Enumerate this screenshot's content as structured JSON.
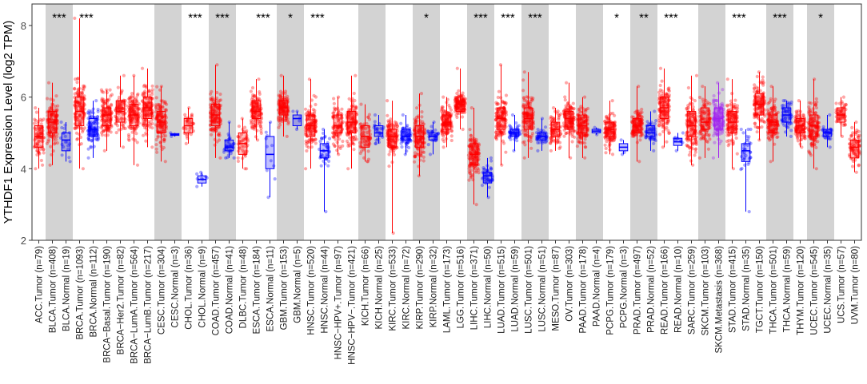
{
  "chart_data": {
    "type": "box",
    "title": "",
    "ylabel": "YTHDF1 Expression Level (log2 TPM)",
    "xlabel": "",
    "ylim": [
      2,
      8.6
    ],
    "yticks": [
      2,
      4,
      6,
      8
    ],
    "colors": {
      "tumor": "#ff0000",
      "normal": "#0000ff",
      "metastasis": "#a020f0",
      "band": "#d3d3d3"
    },
    "categories": [
      {
        "label": "ACC.Tumor (n=79)",
        "group": "tumor",
        "median": 4.9,
        "q1": 4.6,
        "q3": 5.2,
        "min": 4.0,
        "max": 5.7,
        "n": 79,
        "shade": false,
        "sig": ""
      },
      {
        "label": "BLCA.Tumor (n=408)",
        "group": "tumor",
        "median": 5.3,
        "q1": 5.0,
        "q3": 5.6,
        "min": 4.1,
        "max": 6.4,
        "n": 408,
        "shade": true,
        "sig": "***"
      },
      {
        "label": "BLCA.Normal (n=19)",
        "group": "normal",
        "median": 4.8,
        "q1": 4.5,
        "q3": 5.0,
        "min": 4.2,
        "max": 5.3,
        "n": 19,
        "shade": true,
        "sig": ""
      },
      {
        "label": "BRCA.Tumor (n=1093)",
        "group": "tumor",
        "median": 5.6,
        "q1": 5.2,
        "q3": 6.0,
        "min": 4.0,
        "max": 8.2,
        "n": 1093,
        "shade": false,
        "sig": "***"
      },
      {
        "label": "BRCA.Normal (n=112)",
        "group": "normal",
        "median": 5.1,
        "q1": 4.9,
        "q3": 5.4,
        "min": 4.3,
        "max": 5.9,
        "n": 112,
        "shade": false,
        "sig": ""
      },
      {
        "label": "BRCA−Basal.Tumor (n=190)",
        "group": "tumor",
        "median": 5.5,
        "q1": 5.2,
        "q3": 5.7,
        "min": 4.5,
        "max": 6.2,
        "n": 190,
        "shade": false,
        "sig": ""
      },
      {
        "label": "BRCA−Her2.Tumor (n=82)",
        "group": "tumor",
        "median": 5.6,
        "q1": 5.3,
        "q3": 5.9,
        "min": 4.6,
        "max": 6.6,
        "n": 82,
        "shade": false,
        "sig": ""
      },
      {
        "label": "BRCA−LumA.Tumor (n=564)",
        "group": "tumor",
        "median": 5.5,
        "q1": 5.2,
        "q3": 5.8,
        "min": 4.1,
        "max": 6.6,
        "n": 564,
        "shade": false,
        "sig": ""
      },
      {
        "label": "BRCA−LumB.Tumor (n=217)",
        "group": "tumor",
        "median": 5.7,
        "q1": 5.4,
        "q3": 6.0,
        "min": 4.6,
        "max": 6.8,
        "n": 217,
        "shade": false,
        "sig": ""
      },
      {
        "label": "CESC.Tumor (n=304)",
        "group": "tumor",
        "median": 5.3,
        "q1": 5.0,
        "q3": 5.6,
        "min": 4.2,
        "max": 6.3,
        "n": 304,
        "shade": true,
        "sig": ""
      },
      {
        "label": "CESC.Normal (n=3)",
        "group": "normal",
        "median": 4.95,
        "q1": 4.93,
        "q3": 4.98,
        "min": 4.9,
        "max": 5.0,
        "n": 3,
        "shade": true,
        "sig": ""
      },
      {
        "label": "CHOL.Tumor (n=36)",
        "group": "tumor",
        "median": 5.2,
        "q1": 5.0,
        "q3": 5.4,
        "min": 4.7,
        "max": 5.7,
        "n": 36,
        "shade": false,
        "sig": "***"
      },
      {
        "label": "CHOL.Normal (n=9)",
        "group": "normal",
        "median": 3.7,
        "q1": 3.6,
        "q3": 3.8,
        "min": 3.5,
        "max": 3.9,
        "n": 9,
        "shade": false,
        "sig": ""
      },
      {
        "label": "COAD.Tumor (n=457)",
        "group": "tumor",
        "median": 5.5,
        "q1": 5.2,
        "q3": 5.8,
        "min": 4.3,
        "max": 6.9,
        "n": 457,
        "shade": true,
        "sig": "***"
      },
      {
        "label": "COAD.Normal (n=41)",
        "group": "normal",
        "median": 4.6,
        "q1": 4.5,
        "q3": 4.8,
        "min": 4.3,
        "max": 5.3,
        "n": 41,
        "shade": true,
        "sig": ""
      },
      {
        "label": "DLBC.Tumor (n=48)",
        "group": "tumor",
        "median": 4.7,
        "q1": 4.4,
        "q3": 5.0,
        "min": 4.0,
        "max": 5.4,
        "n": 48,
        "shade": false,
        "sig": ""
      },
      {
        "label": "ESCA.Tumor (n=184)",
        "group": "tumor",
        "median": 5.6,
        "q1": 5.4,
        "q3": 5.9,
        "min": 4.8,
        "max": 6.5,
        "n": 184,
        "shade": false,
        "sig": "***"
      },
      {
        "label": "ESCA.Normal (n=11)",
        "group": "normal",
        "median": 4.4,
        "q1": 4.0,
        "q3": 4.9,
        "min": 3.2,
        "max": 5.3,
        "n": 11,
        "shade": false,
        "sig": ""
      },
      {
        "label": "GBM.Tumor (n=153)",
        "group": "tumor",
        "median": 5.7,
        "q1": 5.5,
        "q3": 5.9,
        "min": 4.9,
        "max": 6.6,
        "n": 153,
        "shade": true,
        "sig": "*"
      },
      {
        "label": "GBM.Normal (n=5)",
        "group": "normal",
        "median": 5.4,
        "q1": 5.2,
        "q3": 5.5,
        "min": 5.1,
        "max": 5.6,
        "n": 5,
        "shade": true,
        "sig": ""
      },
      {
        "label": "HNSC.Tumor (n=520)",
        "group": "tumor",
        "median": 5.2,
        "q1": 4.9,
        "q3": 5.5,
        "min": 4.0,
        "max": 6.5,
        "n": 520,
        "shade": false,
        "sig": "***"
      },
      {
        "label": "HNSC.Normal (n=44)",
        "group": "normal",
        "median": 4.5,
        "q1": 4.3,
        "q3": 4.7,
        "min": 2.8,
        "max": 5.1,
        "n": 44,
        "shade": false,
        "sig": ""
      },
      {
        "label": "HNSC−HPV+.Tumor (n=97)",
        "group": "tumor",
        "median": 5.2,
        "q1": 5.0,
        "q3": 5.5,
        "min": 4.4,
        "max": 6.0,
        "n": 97,
        "shade": false,
        "sig": ""
      },
      {
        "label": "HNSC−HPV−.Tumor (n=421)",
        "group": "tumor",
        "median": 5.3,
        "q1": 5.0,
        "q3": 5.6,
        "min": 4.0,
        "max": 6.6,
        "n": 421,
        "shade": false,
        "sig": ""
      },
      {
        "label": "KICH.Tumor (n=66)",
        "group": "tumor",
        "median": 4.9,
        "q1": 4.6,
        "q3": 5.2,
        "min": 4.2,
        "max": 5.8,
        "n": 66,
        "shade": true,
        "sig": ""
      },
      {
        "label": "KICH.Normal (n=25)",
        "group": "normal",
        "median": 5.0,
        "q1": 4.9,
        "q3": 5.2,
        "min": 4.7,
        "max": 5.5,
        "n": 25,
        "shade": true,
        "sig": ""
      },
      {
        "label": "KIRC.Tumor (n=533)",
        "group": "tumor",
        "median": 4.9,
        "q1": 4.6,
        "q3": 5.1,
        "min": 2.2,
        "max": 5.9,
        "n": 533,
        "shade": false,
        "sig": ""
      },
      {
        "label": "KIRC.Normal (n=72)",
        "group": "normal",
        "median": 4.9,
        "q1": 4.8,
        "q3": 5.1,
        "min": 4.4,
        "max": 5.5,
        "n": 72,
        "shade": false,
        "sig": ""
      },
      {
        "label": "KIRP.Tumor (n=290)",
        "group": "tumor",
        "median": 4.9,
        "q1": 4.6,
        "q3": 5.2,
        "min": 3.8,
        "max": 6.1,
        "n": 290,
        "shade": true,
        "sig": "*"
      },
      {
        "label": "KIRP.Normal (n=32)",
        "group": "normal",
        "median": 4.9,
        "q1": 4.8,
        "q3": 5.0,
        "min": 4.4,
        "max": 5.3,
        "n": 32,
        "shade": true,
        "sig": ""
      },
      {
        "label": "LAML.Tumor (n=173)",
        "group": "tumor",
        "median": 5.3,
        "q1": 5.1,
        "q3": 5.5,
        "min": 4.6,
        "max": 6.0,
        "n": 173,
        "shade": false,
        "sig": ""
      },
      {
        "label": "LGG.Tumor (n=516)",
        "group": "tumor",
        "median": 5.8,
        "q1": 5.6,
        "q3": 5.9,
        "min": 5.1,
        "max": 6.8,
        "n": 516,
        "shade": false,
        "sig": ""
      },
      {
        "label": "LIHC.Tumor (n=371)",
        "group": "tumor",
        "median": 4.4,
        "q1": 4.1,
        "q3": 4.7,
        "min": 3.0,
        "max": 5.7,
        "n": 371,
        "shade": true,
        "sig": "***"
      },
      {
        "label": "LIHC.Normal (n=50)",
        "group": "normal",
        "median": 3.8,
        "q1": 3.6,
        "q3": 3.9,
        "min": 3.2,
        "max": 4.3,
        "n": 50,
        "shade": true,
        "sig": ""
      },
      {
        "label": "LUAD.Tumor (n=515)",
        "group": "tumor",
        "median": 5.4,
        "q1": 5.1,
        "q3": 5.7,
        "min": 4.1,
        "max": 6.9,
        "n": 515,
        "shade": false,
        "sig": "***"
      },
      {
        "label": "LUAD.Normal (n=59)",
        "group": "normal",
        "median": 5.0,
        "q1": 4.9,
        "q3": 5.1,
        "min": 4.5,
        "max": 5.5,
        "n": 59,
        "shade": false,
        "sig": ""
      },
      {
        "label": "LUSC.Tumor (n=501)",
        "group": "tumor",
        "median": 5.4,
        "q1": 5.1,
        "q3": 5.7,
        "min": 4.3,
        "max": 6.7,
        "n": 501,
        "shade": true,
        "sig": "***"
      },
      {
        "label": "LUSC.Normal (n=51)",
        "group": "normal",
        "median": 4.9,
        "q1": 4.8,
        "q3": 5.0,
        "min": 4.5,
        "max": 5.4,
        "n": 51,
        "shade": true,
        "sig": ""
      },
      {
        "label": "MESO.Tumor (n=87)",
        "group": "tumor",
        "median": 5.1,
        "q1": 4.9,
        "q3": 5.3,
        "min": 4.5,
        "max": 5.7,
        "n": 87,
        "shade": false,
        "sig": ""
      },
      {
        "label": "OV.Tumor (n=303)",
        "group": "tumor",
        "median": 5.4,
        "q1": 5.1,
        "q3": 5.6,
        "min": 4.3,
        "max": 6.4,
        "n": 303,
        "shade": false,
        "sig": ""
      },
      {
        "label": "PAAD.Tumor (n=178)",
        "group": "tumor",
        "median": 5.2,
        "q1": 5.0,
        "q3": 5.5,
        "min": 4.3,
        "max": 6.0,
        "n": 178,
        "shade": true,
        "sig": ""
      },
      {
        "label": "PAAD.Normal (n=4)",
        "group": "normal",
        "median": 5.05,
        "q1": 5.0,
        "q3": 5.1,
        "min": 4.95,
        "max": 5.15,
        "n": 4,
        "shade": true,
        "sig": ""
      },
      {
        "label": "PCPG.Tumor (n=179)",
        "group": "tumor",
        "median": 5.1,
        "q1": 4.9,
        "q3": 5.3,
        "min": 4.4,
        "max": 5.9,
        "n": 179,
        "shade": false,
        "sig": "*"
      },
      {
        "label": "PCPG.Normal (n=3)",
        "group": "normal",
        "median": 4.6,
        "q1": 4.5,
        "q3": 4.7,
        "min": 4.4,
        "max": 4.8,
        "n": 3,
        "shade": false,
        "sig": ""
      },
      {
        "label": "PRAD.Tumor (n=497)",
        "group": "tumor",
        "median": 5.2,
        "q1": 5.0,
        "q3": 5.4,
        "min": 4.2,
        "max": 6.3,
        "n": 497,
        "shade": true,
        "sig": "**"
      },
      {
        "label": "PRAD.Normal (n=52)",
        "group": "normal",
        "median": 5.0,
        "q1": 4.9,
        "q3": 5.2,
        "min": 4.5,
        "max": 5.6,
        "n": 52,
        "shade": true,
        "sig": ""
      },
      {
        "label": "READ.Tumor (n=166)",
        "group": "tumor",
        "median": 5.7,
        "q1": 5.4,
        "q3": 6.0,
        "min": 4.6,
        "max": 6.8,
        "n": 166,
        "shade": false,
        "sig": "***"
      },
      {
        "label": "READ.Normal (n=10)",
        "group": "normal",
        "median": 4.75,
        "q1": 4.65,
        "q3": 4.85,
        "min": 4.5,
        "max": 5.0,
        "n": 10,
        "shade": false,
        "sig": ""
      },
      {
        "label": "SARC.Tumor (n=259)",
        "group": "tumor",
        "median": 5.2,
        "q1": 4.9,
        "q3": 5.6,
        "min": 4.1,
        "max": 6.6,
        "n": 259,
        "shade": false,
        "sig": ""
      },
      {
        "label": "SKCM.Tumor (n=103)",
        "group": "tumor",
        "median": 5.3,
        "q1": 5.1,
        "q3": 5.7,
        "min": 4.3,
        "max": 6.3,
        "n": 103,
        "shade": true,
        "sig": ""
      },
      {
        "label": "SKCM.Metastasis (n=368)",
        "group": "metastasis",
        "median": 5.4,
        "q1": 5.1,
        "q3": 5.7,
        "min": 4.3,
        "max": 6.4,
        "n": 368,
        "shade": true,
        "sig": ""
      },
      {
        "label": "STAD.Tumor (n=415)",
        "group": "tumor",
        "median": 5.3,
        "q1": 5.0,
        "q3": 5.6,
        "min": 4.0,
        "max": 6.5,
        "n": 415,
        "shade": false,
        "sig": "***"
      },
      {
        "label": "STAD.Normal (n=35)",
        "group": "normal",
        "median": 4.5,
        "q1": 4.2,
        "q3": 4.7,
        "min": 2.8,
        "max": 5.1,
        "n": 35,
        "shade": false,
        "sig": ""
      },
      {
        "label": "TGCT.Tumor (n=150)",
        "group": "tumor",
        "median": 5.8,
        "q1": 5.5,
        "q3": 6.1,
        "min": 4.8,
        "max": 6.7,
        "n": 150,
        "shade": false,
        "sig": ""
      },
      {
        "label": "THCA.Tumor (n=501)",
        "group": "tumor",
        "median": 5.3,
        "q1": 5.0,
        "q3": 5.5,
        "min": 4.2,
        "max": 6.3,
        "n": 501,
        "shade": true,
        "sig": "***"
      },
      {
        "label": "THCA.Normal (n=59)",
        "group": "normal",
        "median": 5.5,
        "q1": 5.3,
        "q3": 5.7,
        "min": 4.9,
        "max": 5.9,
        "n": 59,
        "shade": true,
        "sig": ""
      },
      {
        "label": "THYM.Tumor (n=120)",
        "group": "tumor",
        "median": 5.2,
        "q1": 5.0,
        "q3": 5.4,
        "min": 4.6,
        "max": 5.9,
        "n": 120,
        "shade": false,
        "sig": ""
      },
      {
        "label": "UCEC.Tumor (n=545)",
        "group": "tumor",
        "median": 5.2,
        "q1": 4.9,
        "q3": 5.5,
        "min": 4.0,
        "max": 6.5,
        "n": 545,
        "shade": true,
        "sig": "*"
      },
      {
        "label": "UCEC.Normal (n=35)",
        "group": "normal",
        "median": 5.0,
        "q1": 4.9,
        "q3": 5.1,
        "min": 4.6,
        "max": 5.5,
        "n": 35,
        "shade": true,
        "sig": ""
      },
      {
        "label": "UCS.Tumor (n=57)",
        "group": "tumor",
        "median": 5.5,
        "q1": 5.3,
        "q3": 5.7,
        "min": 4.9,
        "max": 6.0,
        "n": 57,
        "shade": false,
        "sig": ""
      },
      {
        "label": "UVM.Tumor (n=80)",
        "group": "tumor",
        "median": 4.6,
        "q1": 4.3,
        "q3": 4.8,
        "min": 3.9,
        "max": 5.3,
        "n": 80,
        "shade": false,
        "sig": ""
      }
    ]
  }
}
